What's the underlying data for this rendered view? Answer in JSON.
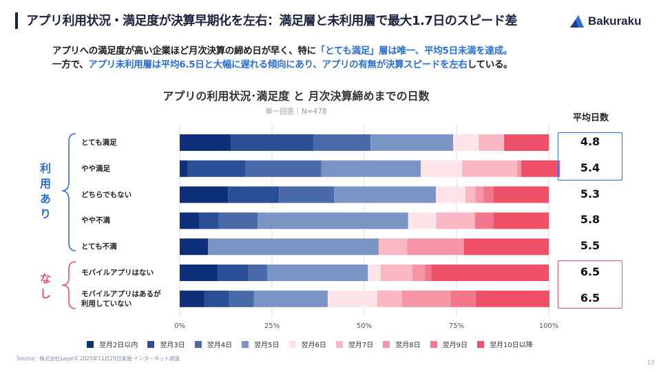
{
  "header": {
    "title": "アプリ利用状況・満足度が決算早期化を左右：満足層と未利用層で最大1.7日のスピード差",
    "logo_text": "Bakuraku"
  },
  "lead": {
    "line1_a": "アプリへの満足度が高い企業ほど月次決算の締め日が早く、特に",
    "line1_b": "「とても満足」層は唯一、平均5日未満を達成。",
    "line2_a": "一方で、",
    "line2_b": "アプリ未利用層は平均6.5日と大幅に遅れる傾向にあり、アプリの有無が決算スピードを左右",
    "line2_c": "している。"
  },
  "groups": {
    "use": "利用あり",
    "none": "なし"
  },
  "avg_header": "平均日数",
  "chart_data": {
    "type": "bar",
    "orientation": "horizontal-stacked-100",
    "title": "アプリの利用状況･満足度 と 月次決算締めまでの日数",
    "subtitle": "単一回答｜N=478",
    "categories": [
      [
        "とても満足"
      ],
      [
        "やや満足"
      ],
      [
        "どちらでもない"
      ],
      [
        "やや不満"
      ],
      [
        "とても不満"
      ],
      [
        "モバイルアプリはない"
      ],
      [
        "モバイルアプリはあるが",
        "利用していない"
      ]
    ],
    "averages": [
      "4.8",
      "5.4",
      "5.3",
      "5.8",
      "5.5",
      "6.5",
      "6.5"
    ],
    "xlim": [
      0,
      100
    ],
    "x_ticks": [
      "0%",
      "25%",
      "50%",
      "75%",
      "100%"
    ],
    "grid": true,
    "legend_position": "bottom",
    "series": [
      {
        "name": "翌月2日以内",
        "color": "#0e2f7a",
        "values": [
          13.8,
          2.2,
          13.1,
          5.3,
          7.7,
          10.3,
          6.7
        ]
      },
      {
        "name": "翌月3日",
        "color": "#2a4f96",
        "values": [
          22.4,
          15.6,
          13.8,
          5.3,
          0.0,
          8.3,
          6.7
        ]
      },
      {
        "name": "翌月4日",
        "color": "#4a6aa9",
        "values": [
          15.5,
          20.6,
          14.9,
          10.5,
          0.0,
          5.1,
          6.7
        ]
      },
      {
        "name": "翌月5日",
        "color": "#7a95c5",
        "values": [
          22.4,
          26.9,
          27.6,
          40.8,
          46.2,
          27.3,
          20.0
        ]
      },
      {
        "name": "翌月6日",
        "color": "#fde4e8",
        "values": [
          6.9,
          11.2,
          8.0,
          7.6,
          0.0,
          3.4,
          13.4
        ]
      },
      {
        "name": "翌月7日",
        "color": "#f9b8c4",
        "values": [
          6.9,
          14.9,
          2.7,
          10.5,
          7.7,
          8.6,
          6.7
        ]
      },
      {
        "name": "翌月8日",
        "color": "#f595a6",
        "values": [
          0.0,
          1.1,
          2.2,
          0.0,
          15.4,
          3.5,
          13.3
        ]
      },
      {
        "name": "翌月9日",
        "color": "#f2768c",
        "values": [
          0.0,
          0.0,
          2.7,
          5.0,
          0.0,
          1.7,
          6.7
        ]
      },
      {
        "name": "翌月10日以降",
        "color": "#ee5068",
        "values": [
          12.1,
          10.5,
          15.0,
          15.0,
          23.0,
          31.8,
          20.0
        ]
      }
    ]
  },
  "footer": {
    "source": "Source：株式会社LayerX 2025年11月25日実施 インターネット調査",
    "page": "13"
  }
}
